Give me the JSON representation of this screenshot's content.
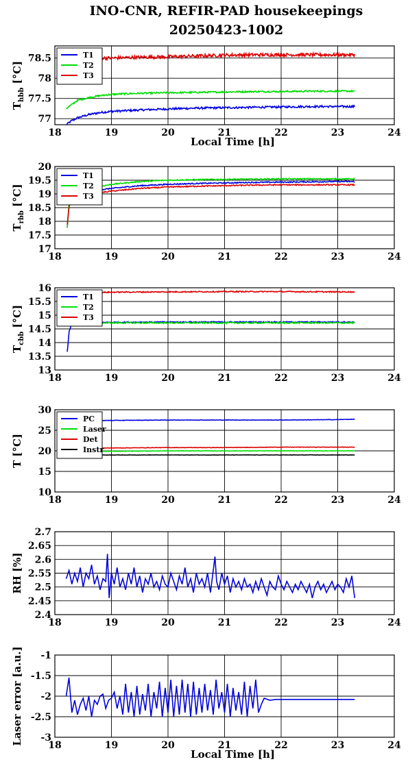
{
  "title_line1": "INO-CNR, REFIR-PAD housekeepings",
  "title_line2": "20250423-1002",
  "colors": {
    "T1": "#0000dd",
    "T2": "#00dd00",
    "T3": "#dd0000",
    "PC": "#0000dd",
    "Laser": "#00dd00",
    "Det": "#dd0000",
    "Instr": "#000000"
  },
  "chart_data": [
    {
      "type": "line",
      "ylabel": {
        "main": "T",
        "sub": "hbb",
        "unit": " [°C]"
      },
      "xlabel": "Local Time [h]",
      "xlim": [
        18,
        24
      ],
      "ylim": [
        76.85,
        78.8
      ],
      "xticks": [
        "18",
        "19",
        "20",
        "21",
        "22",
        "23",
        "24"
      ],
      "yticks": [
        {
          "value": 77,
          "label": "77"
        },
        {
          "value": 77.5,
          "label": "77.5"
        },
        {
          "value": 78,
          "label": "78"
        },
        {
          "value": 78.5,
          "label": "78.5"
        }
      ],
      "grid": true,
      "legend_position": "top-left",
      "series": [
        {
          "name": "T1",
          "x": [
            18.2,
            18.3,
            18.4,
            18.6,
            18.8,
            19.0,
            19.3,
            19.6,
            20.0,
            20.5,
            21.0,
            21.5,
            22.0,
            22.5,
            23.0,
            23.3
          ],
          "y": [
            76.85,
            76.95,
            77.02,
            77.1,
            77.15,
            77.18,
            77.2,
            77.22,
            77.24,
            77.26,
            77.27,
            77.28,
            77.29,
            77.3,
            77.3,
            77.3
          ],
          "noise": 0.025
        },
        {
          "name": "T2",
          "x": [
            18.2,
            18.3,
            18.4,
            18.6,
            18.8,
            19.0,
            19.3,
            19.6,
            20.0,
            20.5,
            21.0,
            21.5,
            22.0,
            22.5,
            23.0,
            23.3
          ],
          "y": [
            77.25,
            77.35,
            77.45,
            77.52,
            77.57,
            77.6,
            77.62,
            77.63,
            77.64,
            77.65,
            77.66,
            77.67,
            77.67,
            77.68,
            77.68,
            77.68
          ],
          "noise": 0.02
        },
        {
          "name": "T3",
          "x": [
            18.3,
            19.0,
            19.5,
            20.0,
            20.5,
            21.0,
            21.5,
            22.0,
            22.5,
            23.0,
            23.3
          ],
          "y": [
            78.5,
            78.5,
            78.52,
            78.53,
            78.55,
            78.57,
            78.58,
            78.58,
            78.58,
            78.58,
            78.58
          ],
          "noise": 0.04
        }
      ]
    },
    {
      "type": "line",
      "ylabel": {
        "main": "T",
        "sub": "rbb",
        "unit": " [°C]"
      },
      "xlabel": "",
      "xlim": [
        18,
        24
      ],
      "ylim": [
        17,
        20
      ],
      "xticks": [
        "18",
        "19",
        "20",
        "21",
        "22",
        "23",
        "24"
      ],
      "yticks": [
        {
          "value": 17,
          "label": "17"
        },
        {
          "value": 17.5,
          "label": "17.5"
        },
        {
          "value": 18,
          "label": "18"
        },
        {
          "value": 18.5,
          "label": "18.5"
        },
        {
          "value": 19,
          "label": "19"
        },
        {
          "value": 19.5,
          "label": "19.5"
        },
        {
          "value": 20,
          "label": "20"
        }
      ],
      "grid": true,
      "legend_position": "top-left",
      "series": [
        {
          "name": "T1",
          "x": [
            18.22,
            18.25,
            18.3,
            18.6,
            19.0,
            19.5,
            20.0,
            20.5,
            21.0,
            21.5,
            22.0,
            22.5,
            23.0,
            23.3
          ],
          "y": [
            17.8,
            18.6,
            18.9,
            19.1,
            19.2,
            19.3,
            19.35,
            19.38,
            19.4,
            19.42,
            19.43,
            19.44,
            19.45,
            19.45
          ],
          "noise": 0.02
        },
        {
          "name": "T2",
          "x": [
            18.22,
            18.25,
            18.3,
            18.6,
            19.0,
            19.5,
            20.0,
            20.5,
            21.0,
            21.5,
            22.0,
            22.5,
            23.0,
            23.3
          ],
          "y": [
            17.75,
            18.7,
            19.0,
            19.2,
            19.35,
            19.45,
            19.5,
            19.52,
            19.53,
            19.54,
            19.55,
            19.55,
            19.55,
            19.55
          ],
          "noise": 0.02
        },
        {
          "name": "T3",
          "x": [
            18.22,
            18.25,
            18.3,
            18.6,
            19.0,
            19.5,
            20.0,
            20.5,
            21.0,
            21.5,
            22.0,
            22.5,
            23.0,
            23.3
          ],
          "y": [
            17.9,
            18.5,
            18.85,
            19.0,
            19.1,
            19.2,
            19.25,
            19.28,
            19.3,
            19.32,
            19.33,
            19.33,
            19.33,
            19.33
          ],
          "noise": 0.02
        }
      ]
    },
    {
      "type": "line",
      "ylabel": {
        "main": "T",
        "sub": "cbb",
        "unit": " [°C]"
      },
      "xlabel": "",
      "xlim": [
        18,
        24
      ],
      "ylim": [
        13,
        16
      ],
      "xticks": [
        "18",
        "19",
        "20",
        "21",
        "22",
        "23",
        "24"
      ],
      "yticks": [
        {
          "value": 13,
          "label": "13"
        },
        {
          "value": 13.5,
          "label": "13.5"
        },
        {
          "value": 14,
          "label": "14"
        },
        {
          "value": 14.5,
          "label": "14.5"
        },
        {
          "value": 15,
          "label": "15"
        },
        {
          "value": 15.5,
          "label": "15.5"
        },
        {
          "value": 16,
          "label": "16"
        }
      ],
      "grid": true,
      "legend_position": "top-left",
      "series": [
        {
          "name": "T1",
          "x": [
            18.22,
            18.25,
            18.3,
            18.6,
            19.0,
            20.0,
            21.0,
            22.0,
            23.0,
            23.3
          ],
          "y": [
            13.65,
            14.4,
            14.7,
            14.73,
            14.74,
            14.75,
            14.75,
            14.75,
            14.75,
            14.75
          ],
          "noise": 0.02
        },
        {
          "name": "T2",
          "x": [
            18.3,
            18.6,
            19.0,
            20.0,
            21.0,
            22.0,
            23.0,
            23.3
          ],
          "y": [
            14.72,
            14.72,
            14.72,
            14.72,
            14.72,
            14.72,
            14.72,
            14.72
          ],
          "noise": 0.025
        },
        {
          "name": "T3",
          "x": [
            18.3,
            18.6,
            19.0,
            20.0,
            21.0,
            22.0,
            23.0,
            23.3
          ],
          "y": [
            15.82,
            15.82,
            15.84,
            15.85,
            15.86,
            15.86,
            15.85,
            15.85
          ],
          "noise": 0.02
        }
      ]
    },
    {
      "type": "line",
      "ylabel": {
        "main": "T [°C]",
        "sub": "",
        "unit": ""
      },
      "xlabel": "",
      "xlim": [
        18,
        24
      ],
      "ylim": [
        10,
        30
      ],
      "xticks": [
        "18",
        "19",
        "20",
        "21",
        "22",
        "23",
        "24"
      ],
      "yticks": [
        {
          "value": 10,
          "label": "10"
        },
        {
          "value": 15,
          "label": "15"
        },
        {
          "value": 20,
          "label": "20"
        },
        {
          "value": 25,
          "label": "25"
        },
        {
          "value": 30,
          "label": "30"
        }
      ],
      "grid": true,
      "legend_position": "top-left",
      "series": [
        {
          "name": "PC",
          "x": [
            18.3,
            19.0,
            20.0,
            21.0,
            22.0,
            23.0,
            23.3
          ],
          "y": [
            27.3,
            27.4,
            27.5,
            27.5,
            27.5,
            27.6,
            27.7
          ],
          "noise": 0.05
        },
        {
          "name": "Laser",
          "x": [
            18.3,
            19.0,
            20.0,
            21.0,
            22.0,
            23.0,
            23.3
          ],
          "y": [
            19.8,
            19.9,
            20.0,
            20.0,
            20.0,
            20.0,
            20.0
          ],
          "noise": 0.05
        },
        {
          "name": "Det",
          "x": [
            18.3,
            19.0,
            20.0,
            21.0,
            22.0,
            23.0,
            23.3
          ],
          "y": [
            20.6,
            20.7,
            20.8,
            20.8,
            20.9,
            20.9,
            20.9
          ],
          "noise": 0.05
        },
        {
          "name": "Instr",
          "x": [
            18.3,
            19.0,
            20.0,
            21.0,
            22.0,
            23.0,
            23.3
          ],
          "y": [
            19.0,
            19.0,
            19.0,
            19.0,
            19.0,
            19.0,
            19.0
          ],
          "noise": 0.05
        }
      ]
    },
    {
      "type": "line",
      "ylabel": {
        "main": "RH [%]",
        "sub": "",
        "unit": ""
      },
      "xlabel": "",
      "xlim": [
        18,
        24
      ],
      "ylim": [
        2.4,
        2.7
      ],
      "xticks": [
        "18",
        "19",
        "20",
        "21",
        "22",
        "23",
        "24"
      ],
      "yticks": [
        {
          "value": 2.4,
          "label": "2.4"
        },
        {
          "value": 2.45,
          "label": "2.45"
        },
        {
          "value": 2.5,
          "label": "2.5"
        },
        {
          "value": 2.55,
          "label": "2.55"
        },
        {
          "value": 2.6,
          "label": "2.6"
        },
        {
          "value": 2.65,
          "label": "2.65"
        },
        {
          "value": 2.7,
          "label": "2.7"
        }
      ],
      "grid": true,
      "legend_position": "none",
      "series": [
        {
          "x": [
            18.2,
            18.25,
            18.3,
            18.35,
            18.4,
            18.45,
            18.5,
            18.55,
            18.6,
            18.65,
            18.7,
            18.75,
            18.8,
            18.85,
            18.9,
            18.93,
            18.96,
            19.0,
            19.05,
            19.1,
            19.15,
            19.2,
            19.25,
            19.3,
            19.35,
            19.4,
            19.45,
            19.5,
            19.55,
            19.6,
            19.65,
            19.7,
            19.75,
            19.8,
            19.85,
            19.9,
            19.95,
            20.0,
            20.05,
            20.1,
            20.15,
            20.2,
            20.25,
            20.3,
            20.35,
            20.4,
            20.45,
            20.5,
            20.55,
            20.6,
            20.65,
            20.7,
            20.75,
            20.8,
            20.83,
            20.86,
            20.9,
            20.95,
            21.0,
            21.05,
            21.1,
            21.15,
            21.2,
            21.25,
            21.3,
            21.35,
            21.4,
            21.45,
            21.5,
            21.55,
            21.6,
            21.65,
            21.7,
            21.75,
            21.8,
            21.85,
            21.9,
            21.95,
            22.0,
            22.05,
            22.1,
            22.15,
            22.2,
            22.25,
            22.3,
            22.35,
            22.4,
            22.45,
            22.5,
            22.55,
            22.6,
            22.65,
            22.7,
            22.75,
            22.8,
            22.85,
            22.9,
            22.95,
            23.0,
            23.05,
            23.1,
            23.15,
            23.2,
            23.25,
            23.28,
            23.3
          ],
          "y": [
            2.53,
            2.56,
            2.51,
            2.55,
            2.52,
            2.57,
            2.5,
            2.55,
            2.53,
            2.58,
            2.51,
            2.54,
            2.49,
            2.53,
            2.52,
            2.62,
            2.46,
            2.55,
            2.51,
            2.57,
            2.5,
            2.53,
            2.49,
            2.55,
            2.51,
            2.57,
            2.5,
            2.54,
            2.48,
            2.53,
            2.51,
            2.55,
            2.5,
            2.52,
            2.49,
            2.54,
            2.51,
            2.5,
            2.55,
            2.52,
            2.49,
            2.54,
            2.51,
            2.57,
            2.5,
            2.53,
            2.48,
            2.55,
            2.51,
            2.53,
            2.5,
            2.55,
            2.48,
            2.56,
            2.61,
            2.52,
            2.49,
            2.55,
            2.51,
            2.54,
            2.48,
            2.53,
            2.5,
            2.52,
            2.49,
            2.53,
            2.5,
            2.51,
            2.48,
            2.52,
            2.49,
            2.53,
            2.5,
            2.47,
            2.52,
            2.5,
            2.49,
            2.54,
            2.51,
            2.49,
            2.52,
            2.5,
            2.48,
            2.51,
            2.49,
            2.52,
            2.5,
            2.48,
            2.51,
            2.46,
            2.5,
            2.52,
            2.49,
            2.51,
            2.48,
            2.5,
            2.52,
            2.49,
            2.51,
            2.5,
            2.48,
            2.53,
            2.5,
            2.54,
            2.49,
            2.46
          ]
        }
      ]
    },
    {
      "type": "line",
      "ylabel": {
        "main": "Laser error [a.u.]",
        "sub": "",
        "unit": ""
      },
      "xlabel": "Local Time [h]",
      "xlim": [
        18,
        24
      ],
      "ylim": [
        -3,
        -1
      ],
      "xticks": [
        "18",
        "19",
        "20",
        "21",
        "22",
        "23",
        "24"
      ],
      "yticks": [
        {
          "value": -3,
          "label": "-3"
        },
        {
          "value": -2.5,
          "label": "-2.5"
        },
        {
          "value": -2,
          "label": "-2"
        },
        {
          "value": -1.5,
          "label": "-1.5"
        },
        {
          "value": -1,
          "label": "-1"
        }
      ],
      "grid": true,
      "legend_position": "none",
      "series": [
        {
          "x": [
            18.2,
            18.25,
            18.3,
            18.35,
            18.4,
            18.45,
            18.5,
            18.55,
            18.6,
            18.65,
            18.7,
            18.75,
            18.8,
            18.85,
            18.9,
            18.95,
            19.0,
            19.05,
            19.1,
            19.15,
            19.2,
            19.25,
            19.3,
            19.35,
            19.4,
            19.45,
            19.5,
            19.55,
            19.6,
            19.65,
            19.7,
            19.75,
            19.8,
            19.85,
            19.9,
            19.95,
            20.0,
            20.05,
            20.1,
            20.15,
            20.2,
            20.25,
            20.3,
            20.35,
            20.4,
            20.45,
            20.5,
            20.55,
            20.6,
            20.65,
            20.7,
            20.75,
            20.8,
            20.85,
            20.9,
            20.95,
            21.0,
            21.05,
            21.1,
            21.15,
            21.2,
            21.25,
            21.3,
            21.35,
            21.4,
            21.45,
            21.5,
            21.55,
            21.6,
            21.65,
            21.7,
            21.8,
            21.9,
            22.0,
            22.5,
            23.0,
            23.3
          ],
          "y": [
            -2.0,
            -1.55,
            -2.4,
            -2.1,
            -2.45,
            -2.2,
            -2.05,
            -2.35,
            -2.0,
            -2.5,
            -2.1,
            -2.2,
            -2.0,
            -1.95,
            -2.3,
            -2.1,
            -2.05,
            -1.9,
            -2.3,
            -2.0,
            -2.45,
            -1.7,
            -2.4,
            -1.9,
            -2.5,
            -1.75,
            -2.45,
            -1.95,
            -2.35,
            -1.7,
            -2.5,
            -1.9,
            -2.3,
            -1.65,
            -2.5,
            -1.8,
            -2.4,
            -1.6,
            -2.5,
            -1.75,
            -2.45,
            -1.6,
            -2.4,
            -1.7,
            -2.5,
            -1.65,
            -2.45,
            -1.8,
            -2.4,
            -1.7,
            -2.35,
            -1.85,
            -2.45,
            -1.6,
            -2.3,
            -1.9,
            -2.4,
            -1.7,
            -2.5,
            -1.8,
            -2.35,
            -1.9,
            -2.45,
            -1.65,
            -2.5,
            -1.75,
            -2.3,
            -1.6,
            -2.4,
            -2.2,
            -2.05,
            -2.1,
            -2.08,
            -2.08,
            -2.08,
            -2.08,
            -2.08
          ]
        }
      ]
    }
  ]
}
